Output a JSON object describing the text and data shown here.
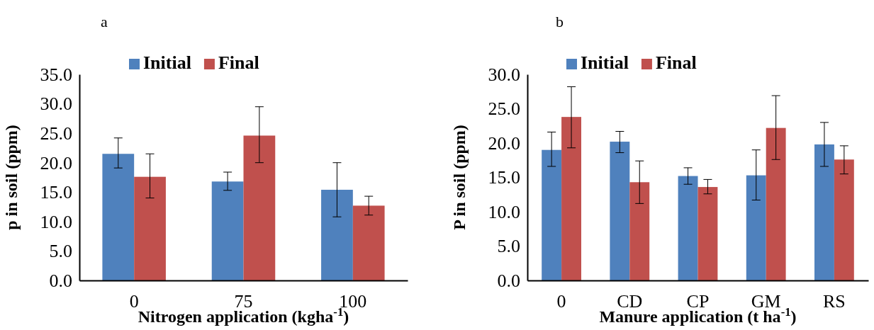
{
  "chart_data": [
    {
      "type": "bar",
      "title": "a",
      "xlabel": "Nitrogen application (kgha$^{-1}$)",
      "ylabel": "p in soil (ppm)",
      "categories": [
        "0",
        "75",
        "100"
      ],
      "series": [
        {
          "name": "Initial",
          "color": "#4f81bd",
          "values": [
            21.5,
            16.8,
            15.4
          ],
          "errors": [
            [
              19.1,
              24.2
            ],
            [
              15.3,
              18.4
            ],
            [
              10.8,
              20.0
            ]
          ]
        },
        {
          "name": "Final",
          "color": "#c0504d",
          "values": [
            17.6,
            24.6,
            12.7
          ],
          "errors": [
            [
              14.0,
              21.5
            ],
            [
              20.0,
              29.5
            ],
            [
              11.1,
              14.3
            ]
          ]
        }
      ],
      "ylim": [
        0,
        35
      ],
      "yticks": [
        {
          "value": 0,
          "label": "0.0"
        },
        {
          "value": 5,
          "label": "5.0"
        },
        {
          "value": 10,
          "label": "10.0"
        },
        {
          "value": 15,
          "label": "15.0"
        },
        {
          "value": 20,
          "label": "20.0"
        },
        {
          "value": 25,
          "label": "25.0"
        },
        {
          "value": 30,
          "label": "30.0"
        },
        {
          "value": 35,
          "label": "35.0"
        }
      ],
      "legend": "top"
    },
    {
      "type": "bar",
      "title": "b",
      "xlabel": "Manure application (t ha$^{-1}$)",
      "ylabel": "P in soil (ppm)",
      "categories": [
        "0",
        "CD",
        "CP",
        "GM",
        "RS"
      ],
      "series": [
        {
          "name": "Initial",
          "color": "#4f81bd",
          "values": [
            19.0,
            20.2,
            15.2,
            15.3,
            19.8
          ],
          "errors": [
            [
              16.6,
              21.6
            ],
            [
              18.6,
              21.7
            ],
            [
              14.0,
              16.4
            ],
            [
              11.7,
              19.0
            ],
            [
              16.6,
              23.0
            ]
          ]
        },
        {
          "name": "Final",
          "color": "#c0504d",
          "values": [
            23.8,
            14.3,
            13.6,
            22.2,
            17.6
          ],
          "errors": [
            [
              19.3,
              28.2
            ],
            [
              11.2,
              17.4
            ],
            [
              12.6,
              14.7
            ],
            [
              17.6,
              26.9
            ],
            [
              15.5,
              19.6
            ]
          ]
        }
      ],
      "ylim": [
        0,
        30
      ],
      "yticks": [
        {
          "value": 0,
          "label": "0.0"
        },
        {
          "value": 5,
          "label": "5.0"
        },
        {
          "value": 10,
          "label": "10.0"
        },
        {
          "value": 15,
          "label": "15.0"
        },
        {
          "value": 20,
          "label": "20.0"
        },
        {
          "value": 25,
          "label": "25.0"
        },
        {
          "value": 30,
          "label": "30.0"
        }
      ],
      "legend": "top"
    }
  ]
}
